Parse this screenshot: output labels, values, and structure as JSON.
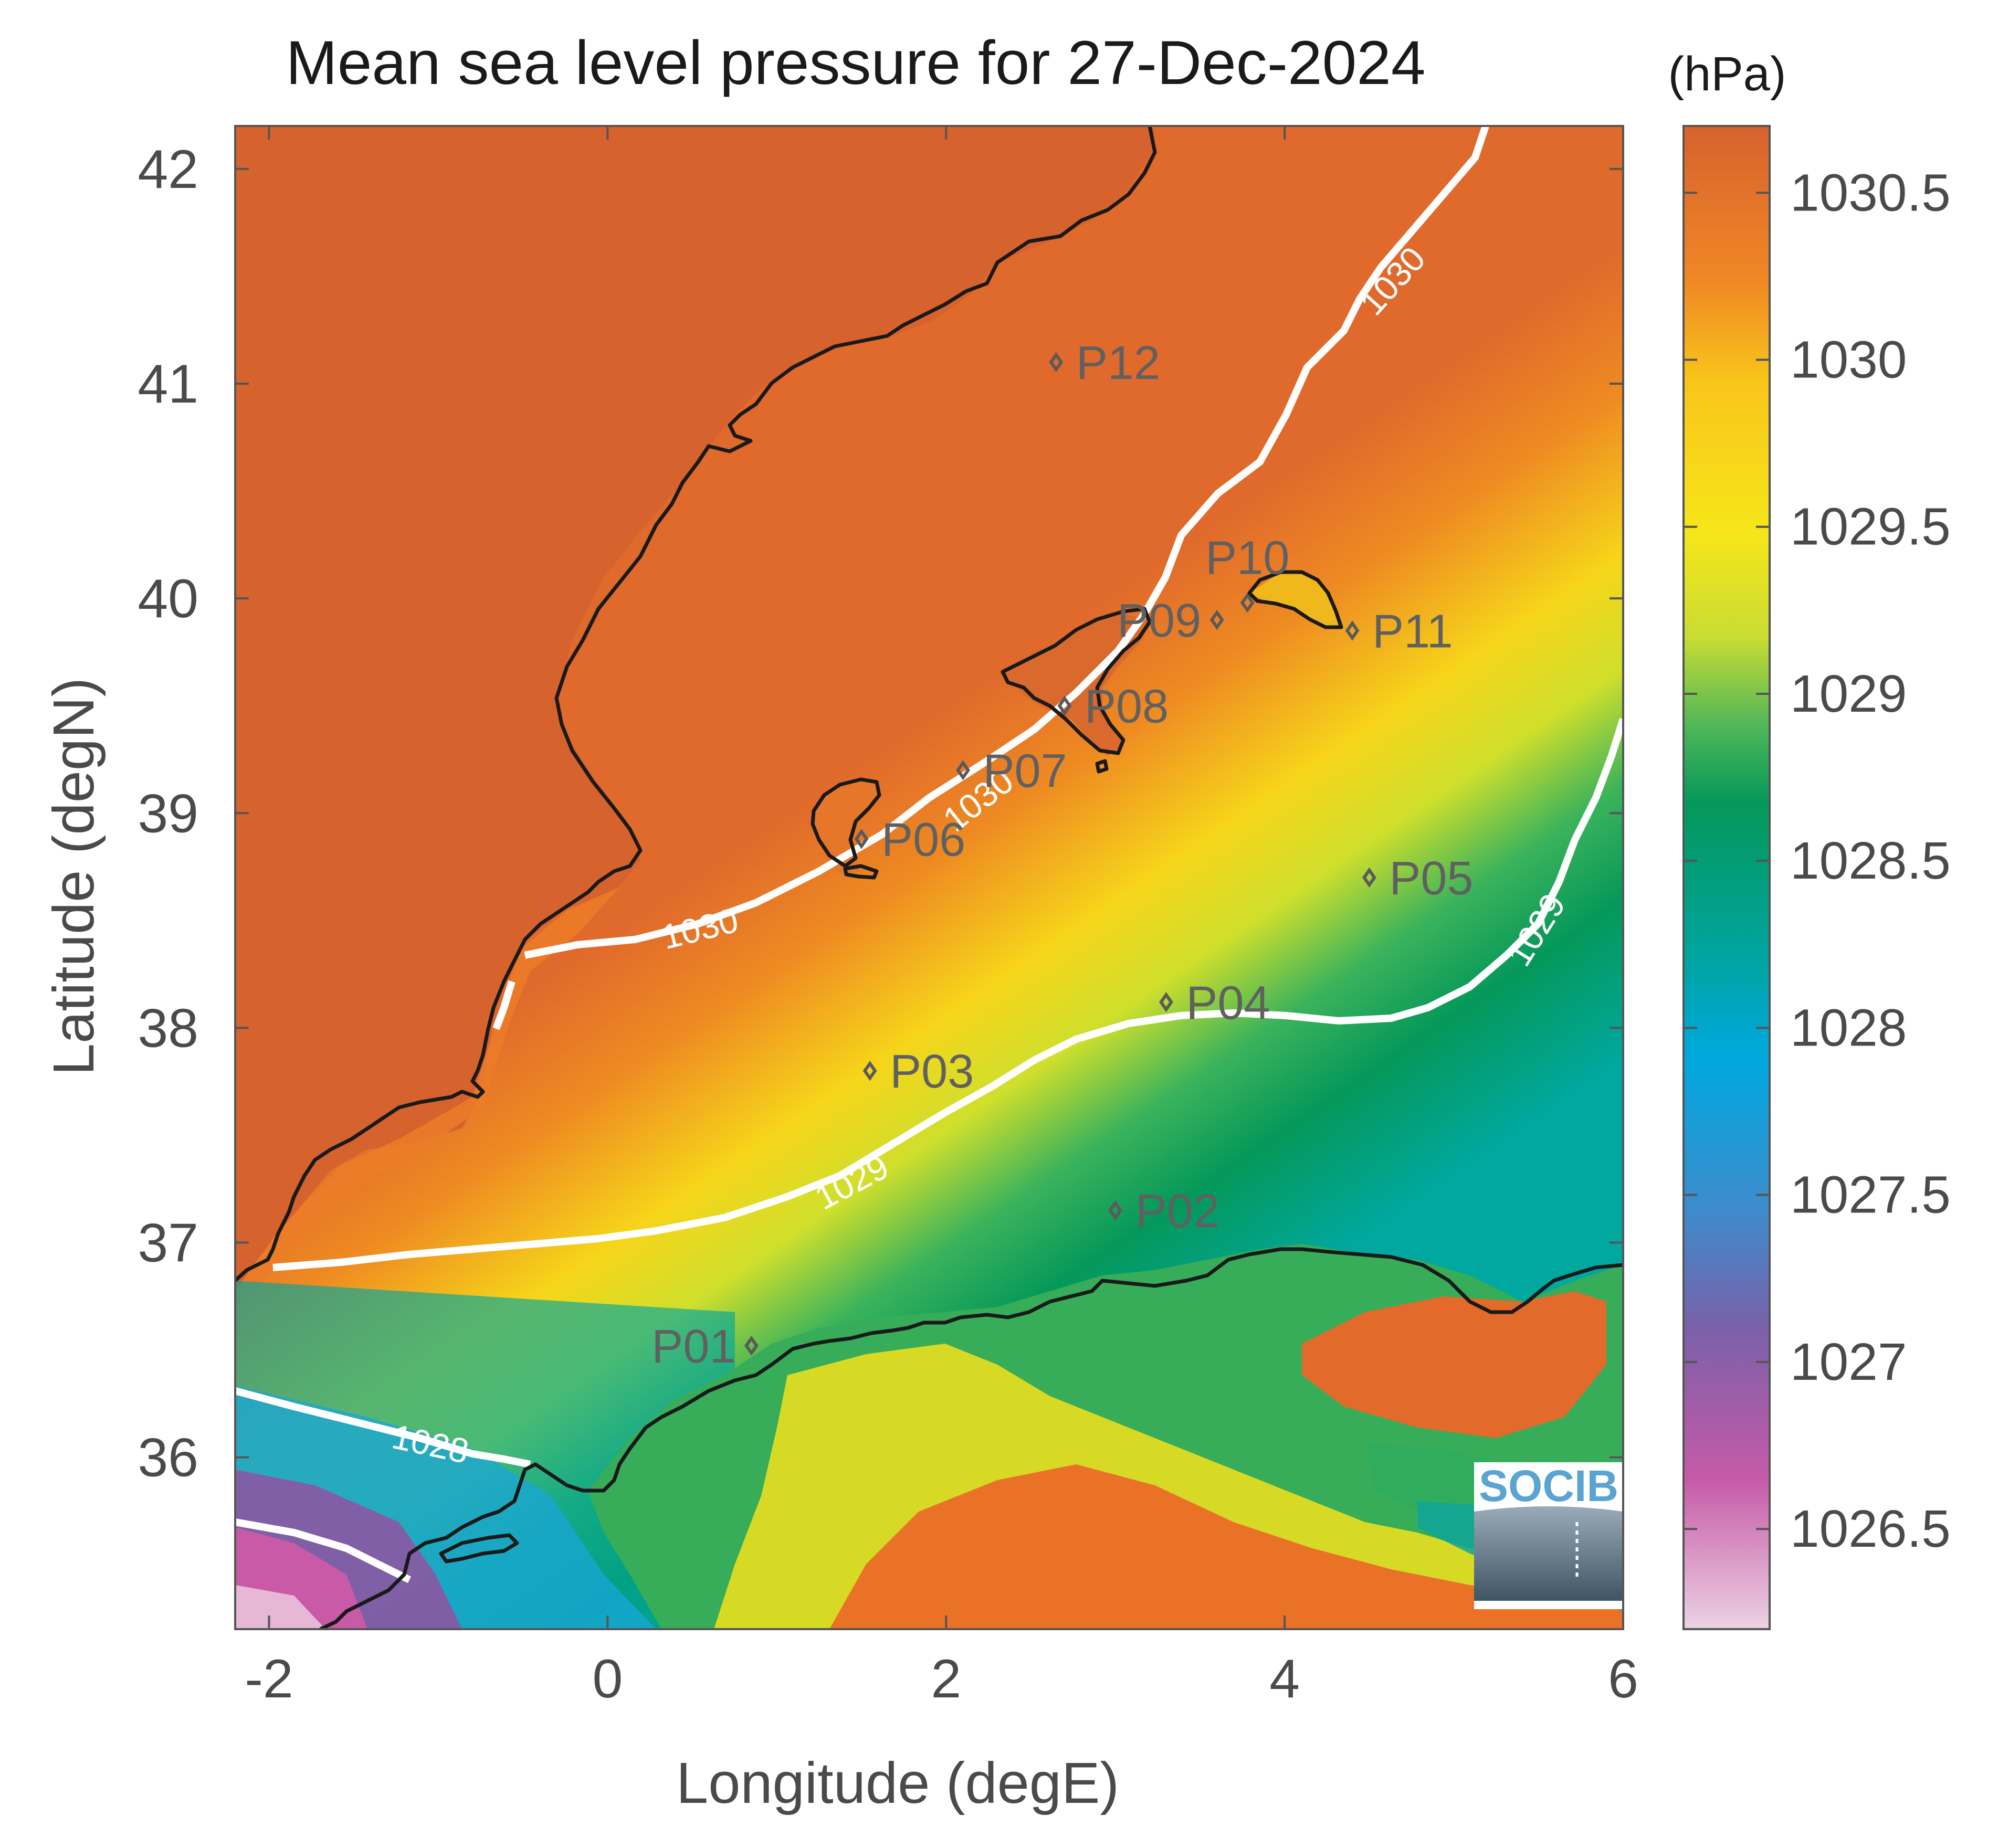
{
  "title": "Mean sea level pressure for 27-Dec-2024",
  "unit": "(hPa)",
  "xlabel": "Longitude (degE)",
  "ylabel": "Latitude (degN)",
  "logo_text": "SOCIB",
  "colors": {
    "land_high": "#d6622e",
    "orange": "#ec7d28",
    "yellow": "#f5e81a",
    "green": "#05985a",
    "teal": "#00a7a0",
    "blue": "#00a8df",
    "purple": "#8b57a3",
    "pink": "#c95aa7",
    "contour": "#ffffff",
    "coast": "#1a1a1a"
  },
  "chart_data": {
    "type": "heatmap",
    "x_range": [
      -2.2,
      6
    ],
    "y_range": [
      35.2,
      42.2
    ],
    "x_ticks": [
      "-2",
      "0",
      "2",
      "4",
      "6"
    ],
    "y_ticks": [
      "42",
      "41",
      "40",
      "39",
      "38",
      "37",
      "36"
    ],
    "colorbar_range": [
      1026.2,
      1030.7
    ],
    "colorbar_ticks": [
      "1030.5",
      "1030",
      "1029.5",
      "1029",
      "1028.5",
      "1028",
      "1027.5",
      "1027",
      "1026.5"
    ],
    "contour_labels": [
      {
        "text": "1030",
        "lon": 4.65,
        "lat": 41.47
      },
      {
        "text": "1030",
        "lon": 0.55,
        "lat": 38.45
      },
      {
        "text": "1030",
        "lon": 2.2,
        "lat": 39.05
      },
      {
        "text": "1029",
        "lon": 1.45,
        "lat": 37.27
      },
      {
        "text": "1029",
        "lon": 5.5,
        "lat": 38.45
      },
      {
        "text": "1028",
        "lon": -1.05,
        "lat": 36.05
      }
    ],
    "stations": [
      {
        "name": "P01",
        "lon": 0.85,
        "lat": 36.52,
        "label": "left"
      },
      {
        "name": "P02",
        "lon": 3.0,
        "lat": 37.15,
        "label": "right"
      },
      {
        "name": "P03",
        "lon": 1.55,
        "lat": 37.8,
        "label": "right"
      },
      {
        "name": "P04",
        "lon": 3.3,
        "lat": 38.12,
        "label": "right"
      },
      {
        "name": "P05",
        "lon": 4.5,
        "lat": 38.7,
        "label": "right"
      },
      {
        "name": "P06",
        "lon": 1.5,
        "lat": 38.88,
        "label": "right"
      },
      {
        "name": "P07",
        "lon": 2.1,
        "lat": 39.2,
        "label": "right"
      },
      {
        "name": "P08",
        "lon": 2.7,
        "lat": 39.5,
        "label": "right"
      },
      {
        "name": "P09",
        "lon": 3.6,
        "lat": 39.9,
        "label": "left"
      },
      {
        "name": "P10",
        "lon": 3.78,
        "lat": 39.98,
        "label": "above"
      },
      {
        "name": "P11",
        "lon": 4.4,
        "lat": 39.85,
        "label": "right"
      },
      {
        "name": "P12",
        "lon": 2.65,
        "lat": 41.1,
        "label": "right"
      }
    ]
  }
}
